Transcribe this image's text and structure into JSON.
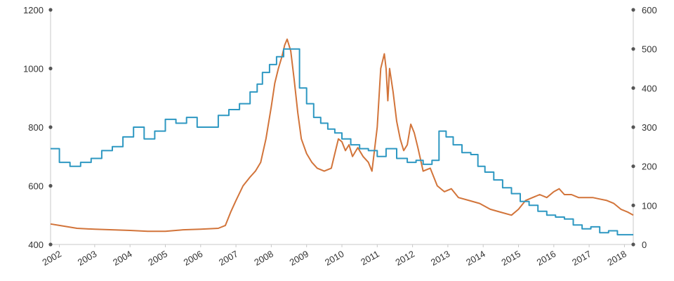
{
  "chart_data": {
    "type": "line",
    "title": "",
    "xlabel": "",
    "ylabel_left": "",
    "ylabel_right": "",
    "x_range": [
      2001.75,
      2018.25
    ],
    "x_ticks": [
      "2002",
      "2003",
      "2004",
      "2005",
      "2006",
      "2007",
      "2008",
      "2009",
      "2010",
      "2011",
      "2012",
      "2013",
      "2014",
      "2015",
      "2016",
      "2017",
      "2018"
    ],
    "y_left_range": [
      400,
      1200
    ],
    "y_left_ticks": [
      "400",
      "600",
      "800",
      "1000",
      "1200"
    ],
    "y_right_range": [
      0,
      600
    ],
    "y_right_ticks": [
      "0",
      "100",
      "200",
      "300",
      "400",
      "500",
      "600"
    ],
    "grid": false,
    "legend": "none",
    "colors": {
      "orange": "#d2743a",
      "blue": "#2e98c2",
      "axis": "#c8c8c8",
      "dot": "#555555"
    },
    "series": [
      {
        "axis": "left",
        "style": "line",
        "color": "#d2743a",
        "x": [
          2001.75,
          2002.0,
          2002.5,
          2003.0,
          2003.5,
          2004.0,
          2004.5,
          2005.0,
          2005.3,
          2005.5,
          2006.0,
          2006.5,
          2006.7,
          2006.85,
          2007.0,
          2007.2,
          2007.4,
          2007.55,
          2007.7,
          2007.85,
          2008.0,
          2008.1,
          2008.2,
          2008.3,
          2008.38,
          2008.45,
          2008.55,
          2008.65,
          2008.75,
          2008.85,
          2009.0,
          2009.15,
          2009.3,
          2009.5,
          2009.7,
          2009.8,
          2009.9,
          2010.0,
          2010.1,
          2010.2,
          2010.3,
          2010.45,
          2010.6,
          2010.75,
          2010.85,
          2011.0,
          2011.1,
          2011.2,
          2011.25,
          2011.3,
          2011.35,
          2011.45,
          2011.55,
          2011.65,
          2011.75,
          2011.85,
          2011.95,
          2012.05,
          2012.15,
          2012.3,
          2012.5,
          2012.7,
          2012.9,
          2013.1,
          2013.3,
          2013.6,
          2013.9,
          2014.2,
          2014.5,
          2014.8,
          2015.0,
          2015.2,
          2015.4,
          2015.6,
          2015.8,
          2016.0,
          2016.15,
          2016.3,
          2016.5,
          2016.7,
          2016.9,
          2017.1,
          2017.3,
          2017.5,
          2017.7,
          2017.9,
          2018.1,
          2018.25
        ],
        "y": [
          470,
          465,
          455,
          452,
          450,
          448,
          445,
          445,
          448,
          450,
          452,
          455,
          465,
          510,
          550,
          600,
          630,
          650,
          680,
          760,
          870,
          950,
          1000,
          1040,
          1080,
          1100,
          1060,
          960,
          850,
          760,
          710,
          680,
          660,
          650,
          660,
          710,
          760,
          750,
          720,
          740,
          700,
          730,
          700,
          680,
          650,
          800,
          1000,
          1050,
          1000,
          890,
          1000,
          920,
          820,
          760,
          720,
          740,
          810,
          780,
          730,
          650,
          660,
          600,
          580,
          590,
          560,
          550,
          540,
          520,
          510,
          500,
          520,
          550,
          560,
          570,
          560,
          580,
          590,
          570,
          570,
          560,
          560,
          560,
          555,
          550,
          540,
          520,
          510,
          500
        ]
      },
      {
        "axis": "right",
        "style": "step",
        "color": "#2e98c2",
        "x": [
          2001.75,
          2002.0,
          2002.3,
          2002.6,
          2002.9,
          2003.2,
          2003.5,
          2003.8,
          2004.1,
          2004.4,
          2004.7,
          2005.0,
          2005.3,
          2005.6,
          2005.9,
          2006.2,
          2006.5,
          2006.8,
          2007.1,
          2007.4,
          2007.6,
          2007.75,
          2007.95,
          2008.15,
          2008.35,
          2008.6,
          2008.8,
          2009.0,
          2009.2,
          2009.4,
          2009.6,
          2009.8,
          2010.0,
          2010.25,
          2010.5,
          2010.75,
          2011.0,
          2011.25,
          2011.55,
          2011.85,
          2012.1,
          2012.3,
          2012.55,
          2012.75,
          2012.95,
          2013.15,
          2013.4,
          2013.65,
          2013.85,
          2014.05,
          2014.3,
          2014.55,
          2014.8,
          2015.05,
          2015.3,
          2015.55,
          2015.8,
          2016.05,
          2016.3,
          2016.55,
          2016.8,
          2017.05,
          2017.3,
          2017.55,
          2017.8,
          2018.05
        ],
        "y": [
          245,
          210,
          200,
          210,
          220,
          240,
          250,
          275,
          300,
          270,
          290,
          320,
          310,
          325,
          300,
          300,
          330,
          345,
          360,
          390,
          410,
          440,
          460,
          480,
          500,
          500,
          400,
          360,
          325,
          310,
          295,
          285,
          270,
          255,
          245,
          240,
          225,
          245,
          220,
          210,
          215,
          205,
          215,
          290,
          275,
          255,
          235,
          230,
          200,
          185,
          165,
          145,
          130,
          110,
          100,
          85,
          75,
          70,
          65,
          50,
          40,
          45,
          30,
          35,
          25,
          25
        ]
      }
    ]
  }
}
